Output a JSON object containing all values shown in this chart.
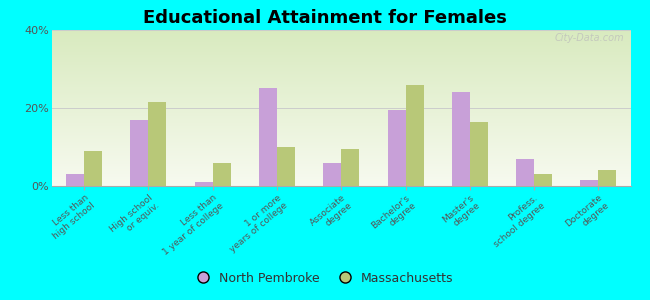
{
  "title": "Educational Attainment for Females",
  "categories": [
    "Less than\nhigh school",
    "High school\nor equiv.",
    "Less than\n1 year of college",
    "1 or more\nyears of college",
    "Associate\ndegree",
    "Bachelor's\ndegree",
    "Master's\ndegree",
    "Profess.\nschool degree",
    "Doctorate\ndegree"
  ],
  "north_pembroke": [
    3.0,
    17.0,
    1.0,
    25.0,
    6.0,
    19.5,
    24.0,
    7.0,
    1.5
  ],
  "massachusetts": [
    9.0,
    21.5,
    6.0,
    10.0,
    9.5,
    26.0,
    16.5,
    3.0,
    4.0
  ],
  "color_np": "#c8a0d8",
  "color_ma": "#b8c878",
  "background_top": "#d8e8c0",
  "background_bottom": "#f0f5e0",
  "background_fig": "#00ffff",
  "ylim": [
    0,
    40
  ],
  "yticks": [
    0,
    20,
    40
  ],
  "ytick_labels": [
    "0%",
    "20%",
    "40%"
  ],
  "legend_labels": [
    "North Pembroke",
    "Massachusetts"
  ],
  "watermark": "City-Data.com"
}
